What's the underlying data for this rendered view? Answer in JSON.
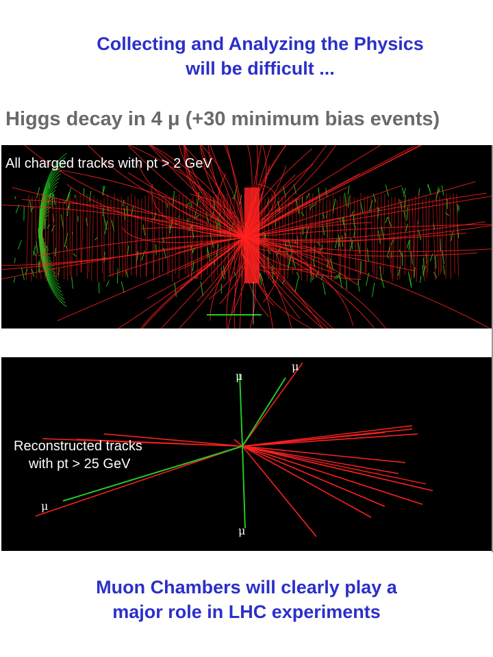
{
  "title": {
    "line1": "Collecting and Analyzing the Physics",
    "line2": "will be difficult ..."
  },
  "higgs_heading": "Higgs decay in 4 μ (+30 minimum bias events)",
  "top_panel": {
    "label": "All charged tracks with pt > 2 GeV",
    "colors": {
      "tracks": "#ff2020",
      "detector": "#1fd21f",
      "background": "#000000"
    }
  },
  "bottom_panel": {
    "label_line1": "Reconstructed tracks",
    "label_line2": "with pt > 25 GeV",
    "muon_symbol": "μ",
    "colors": {
      "tracks": "#ff2020",
      "muons": "#22cc22",
      "background": "#000000"
    }
  },
  "footer": {
    "line1": "Muon Chambers will clearly play a",
    "line2": "major role in LHC experiments"
  },
  "accent_color": "#2b2fc8"
}
